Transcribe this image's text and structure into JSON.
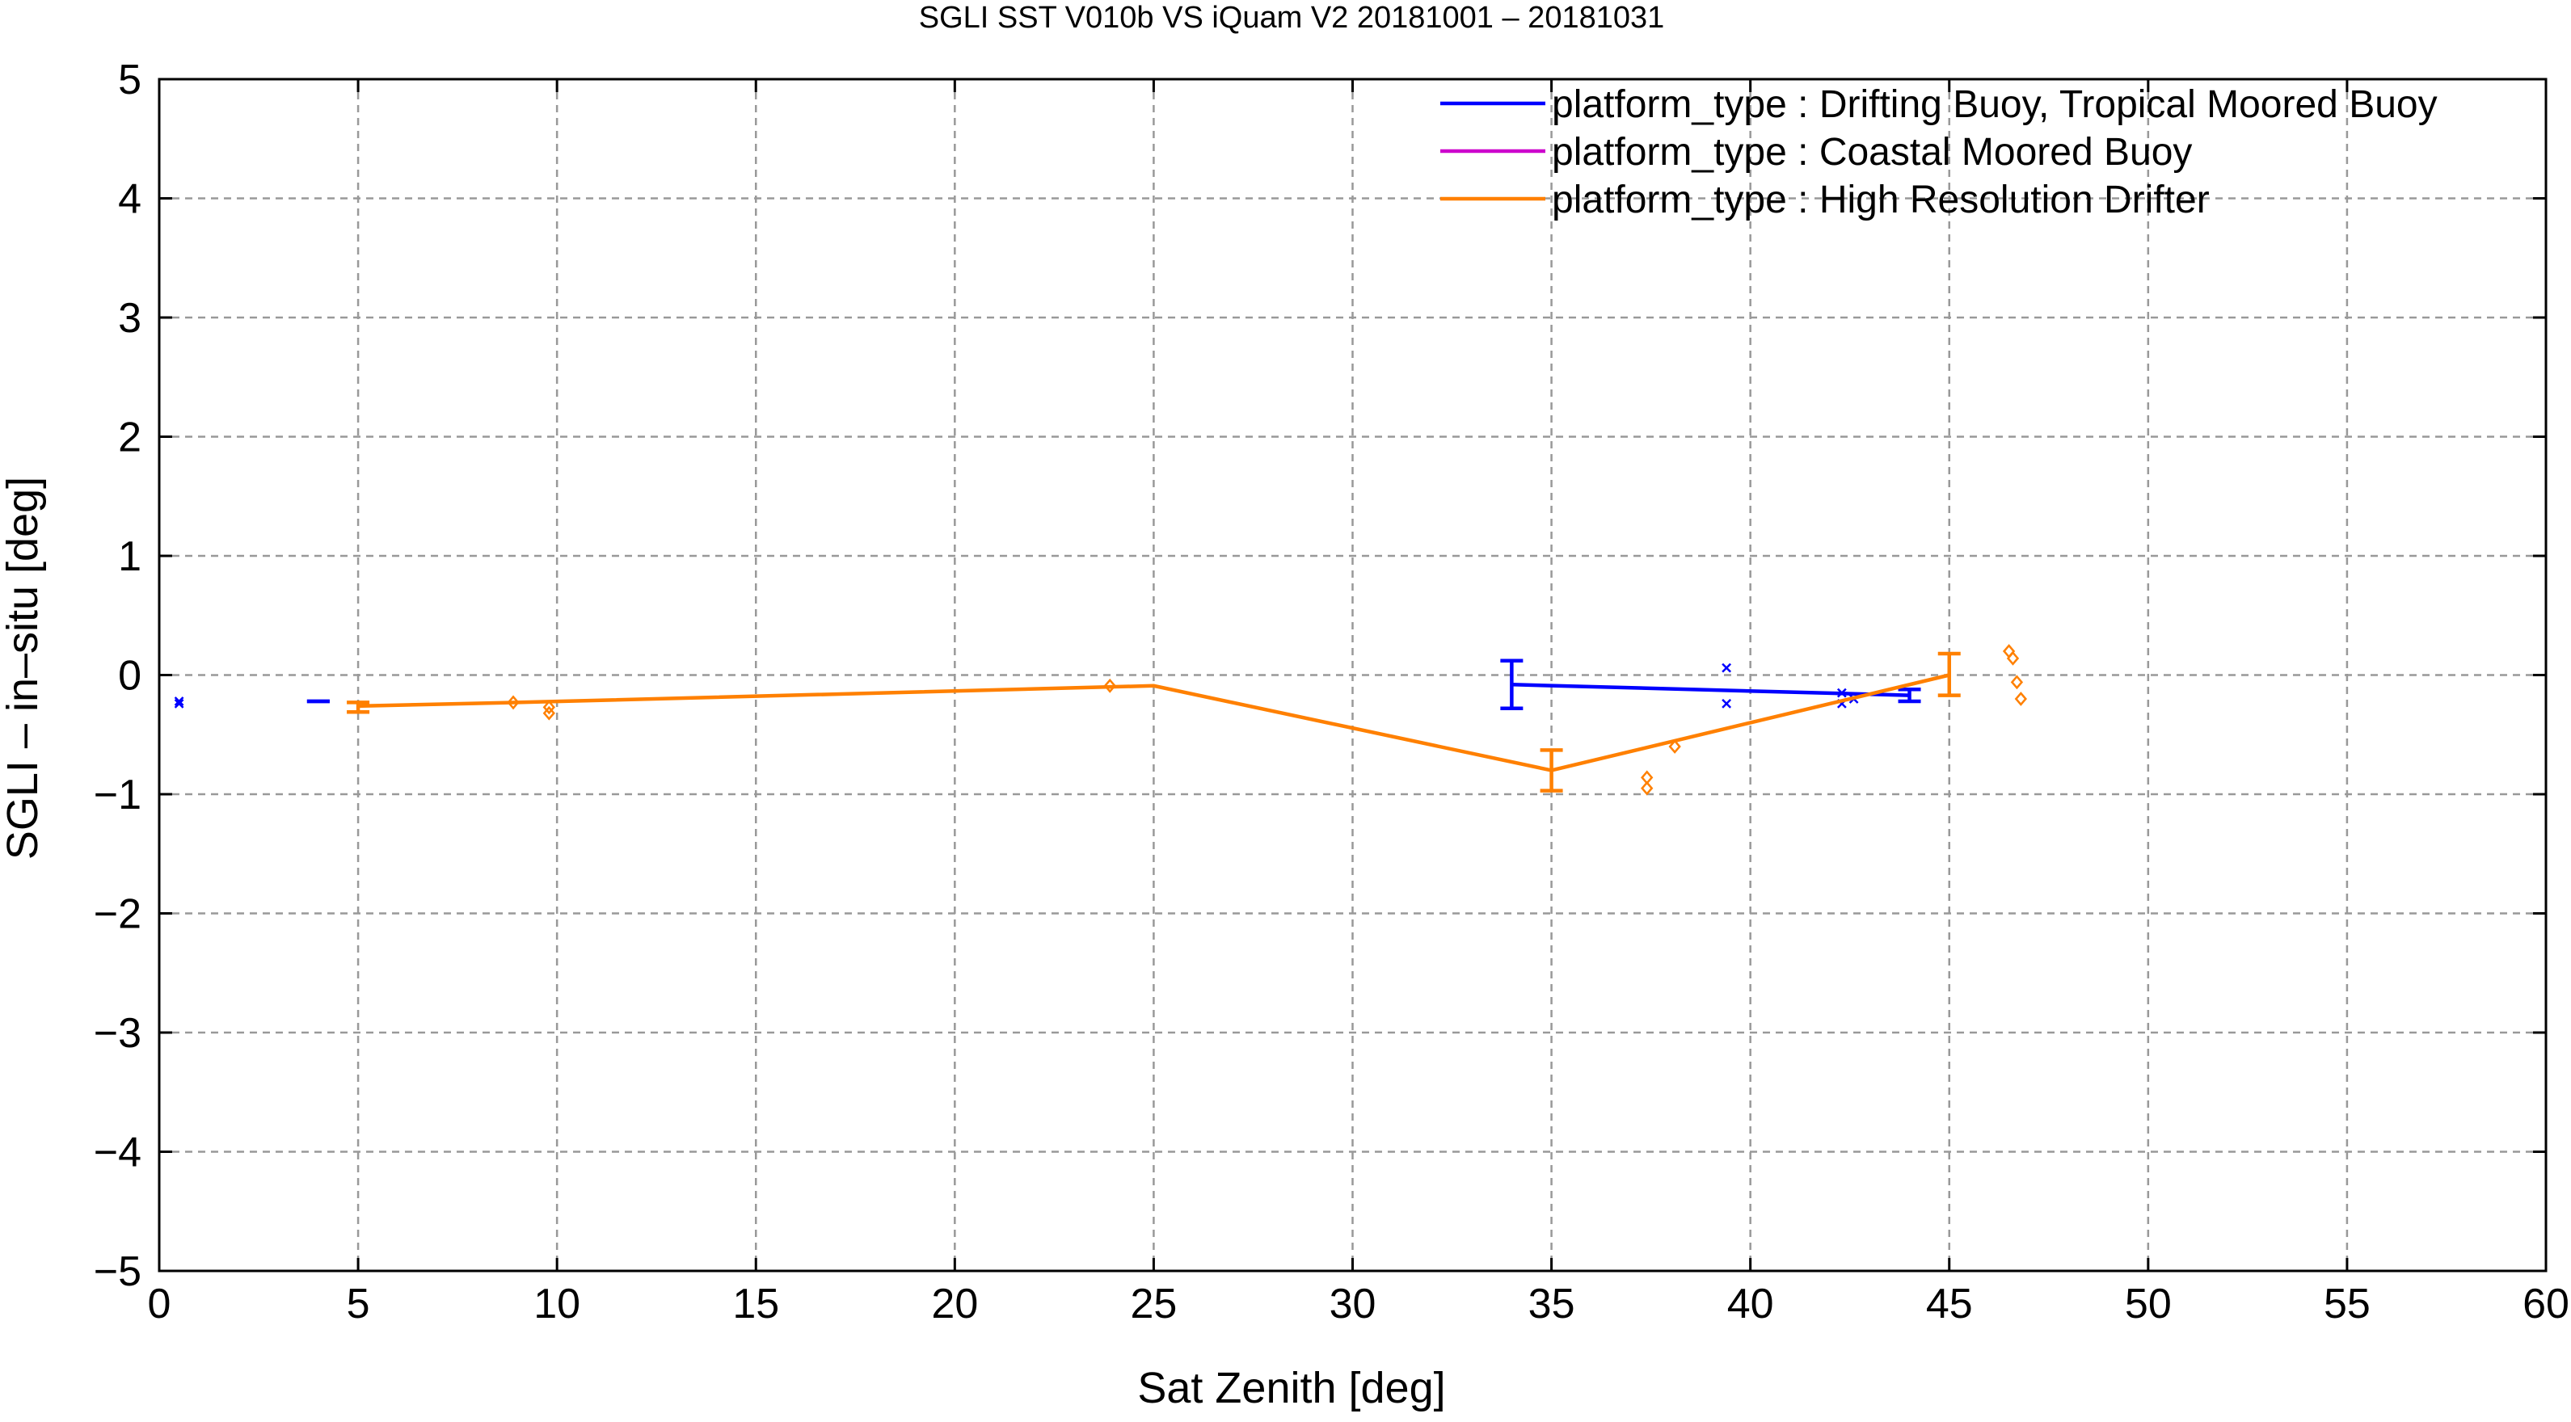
{
  "chart_data": {
    "type": "scatter",
    "title": "SGLI SST V010b VS iQuam V2 20181001 – 20181031",
    "xlabel": "Sat Zenith [deg]",
    "ylabel": "SGLI – in–situ [deg]",
    "xlim": [
      0,
      60
    ],
    "ylim": [
      -5,
      5
    ],
    "xticks": [
      0,
      5,
      10,
      15,
      20,
      25,
      30,
      35,
      40,
      45,
      50,
      55,
      60
    ],
    "yticks": [
      5,
      4,
      3,
      2,
      1,
      0,
      -1,
      -2,
      -3,
      -4,
      -5
    ],
    "xtick_labels": [
      "0",
      "5",
      "10",
      "15",
      "20",
      "25",
      "30",
      "35",
      "40",
      "45",
      "50",
      "55",
      "60"
    ],
    "ytick_labels": [
      "5",
      "4",
      "3",
      "2",
      "1",
      "0",
      "−1",
      "−2",
      "−3",
      "−4",
      "−5"
    ],
    "grid": true,
    "legend_position": "top-right",
    "series": [
      {
        "name": "platform_type : Drifting Buoy, Tropical Moored Buoy",
        "color": "#0000ff",
        "marker": "x",
        "points": [
          [
            0.5,
            -0.22
          ],
          [
            0.5,
            -0.24
          ],
          [
            39.4,
            0.06
          ],
          [
            39.4,
            -0.24
          ],
          [
            42.3,
            -0.15
          ],
          [
            42.3,
            -0.24
          ],
          [
            42.6,
            -0.2
          ]
        ],
        "mean_line": [
          [
            34,
            -0.08
          ],
          [
            44,
            -0.17
          ]
        ],
        "errorbars": [
          [
            4,
            -0.22,
            -0.22
          ],
          [
            34,
            -0.28,
            0.12
          ],
          [
            44,
            -0.22,
            -0.12
          ]
        ]
      },
      {
        "name": "platform_type : Coastal Moored Buoy",
        "color": "#cc00cc",
        "marker": "diamond",
        "points": [],
        "mean_line": [],
        "errorbars": []
      },
      {
        "name": "platform_type : High Resolution Drifter",
        "color": "#ff8000",
        "marker": "diamond",
        "points": [
          [
            8.9,
            -0.23
          ],
          [
            9.8,
            -0.27
          ],
          [
            9.8,
            -0.32
          ],
          [
            23.9,
            -0.09
          ],
          [
            37.4,
            -0.86
          ],
          [
            37.4,
            -0.95
          ],
          [
            38.1,
            -0.6
          ],
          [
            46.5,
            0.2
          ],
          [
            46.6,
            0.14
          ],
          [
            46.7,
            -0.06
          ],
          [
            46.8,
            -0.2
          ]
        ],
        "mean_line": [
          [
            5,
            -0.26
          ],
          [
            9,
            -0.23
          ],
          [
            25,
            -0.09
          ],
          [
            35,
            -0.8
          ],
          [
            45,
            0
          ]
        ],
        "errorbars": [
          [
            5,
            -0.31,
            -0.23
          ],
          [
            35,
            -0.97,
            -0.63
          ],
          [
            45,
            -0.17,
            0.18
          ]
        ]
      }
    ]
  }
}
